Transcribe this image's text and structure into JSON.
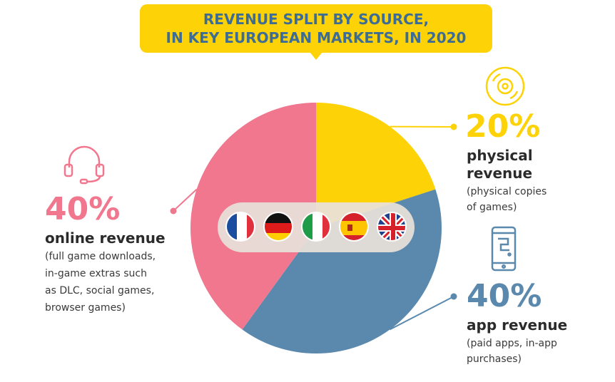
{
  "title": {
    "line1": "REVENUE SPLIT BY SOURCE,",
    "line2": "IN KEY EUROPEAN MARKETS, IN 2020"
  },
  "colors": {
    "physical": "#fdd206",
    "app": "#5b89ae",
    "online": "#f1778f",
    "title_text": "#3d6c95"
  },
  "chart_data": {
    "type": "pie",
    "title": "REVENUE SPLIT BY SOURCE, IN KEY EUROPEAN MARKETS, IN 2020",
    "slices": [
      {
        "label": "physical revenue",
        "value": 20,
        "display": "20%",
        "color": "#fdd206"
      },
      {
        "label": "app revenue",
        "value": 40,
        "display": "40%",
        "color": "#5b89ae"
      },
      {
        "label": "online revenue",
        "value": 40,
        "display": "40%",
        "color": "#f1778f"
      }
    ]
  },
  "physical": {
    "pct": "20%",
    "label_line1": "physical",
    "label_line2": "revenue",
    "desc_line1": "(physical copies",
    "desc_line2": "of games)",
    "icon": "disc-icon"
  },
  "app": {
    "pct": "40%",
    "label": "app revenue",
    "desc_line1": "(paid apps, in-app",
    "desc_line2": "purchases)",
    "icon": "smartphone-icon"
  },
  "online": {
    "pct": "40%",
    "label": "online revenue",
    "desc_line1": "(full game downloads,",
    "desc_line2": "in-game extras such",
    "desc_line3": "as DLC, social games,",
    "desc_line4": "browser games)",
    "icon": "headset-icon"
  },
  "flags": [
    "france-flag",
    "germany-flag",
    "italy-flag",
    "spain-flag",
    "uk-flag"
  ]
}
